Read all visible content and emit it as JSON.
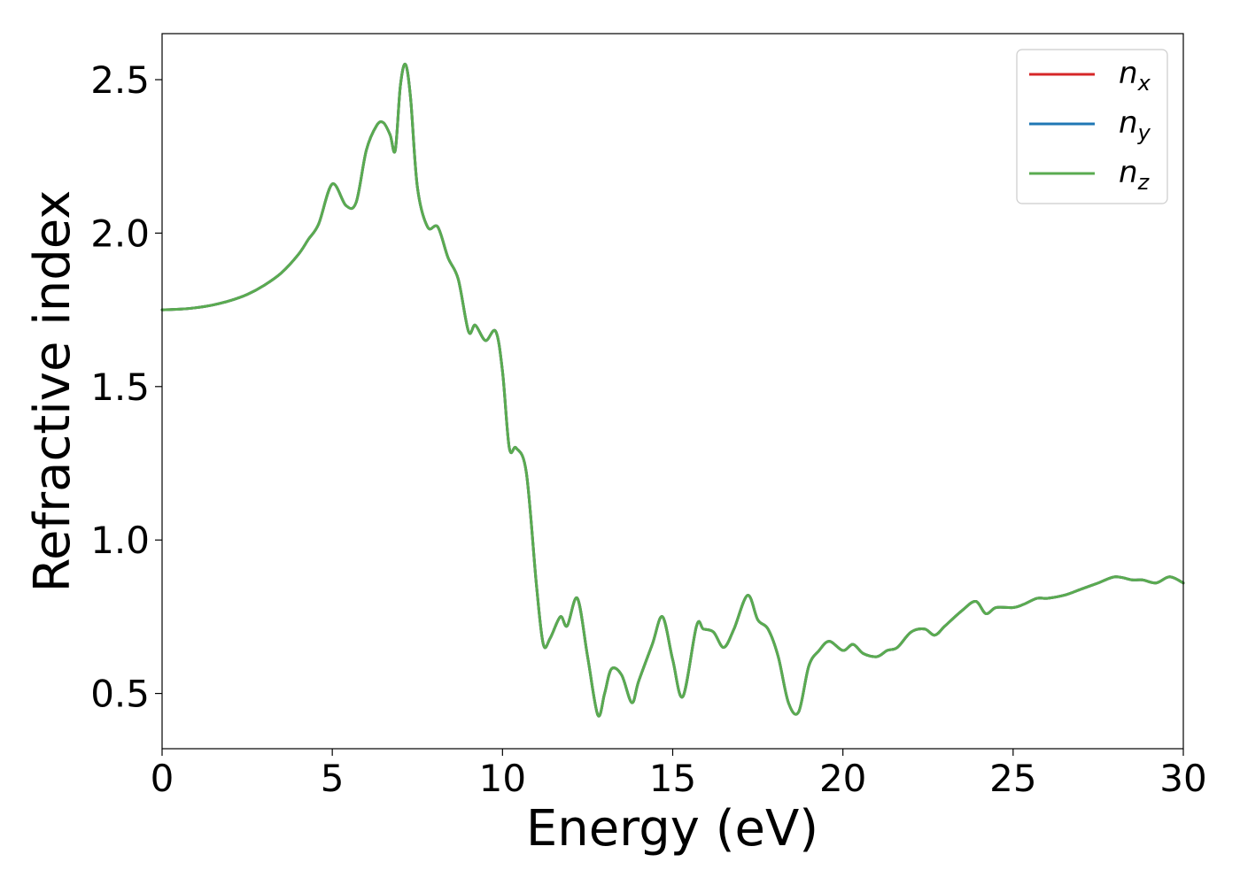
{
  "chart_data": {
    "type": "line",
    "title": "",
    "xlabel": "Energy (eV)",
    "ylabel": "Refractive index",
    "xlim": [
      0,
      30
    ],
    "ylim": [
      0.32,
      2.65
    ],
    "xticks": [
      0,
      5,
      10,
      15,
      20,
      25,
      30
    ],
    "xtick_labels": [
      "0",
      "5",
      "10",
      "15",
      "20",
      "25",
      "30"
    ],
    "yticks": [
      0.5,
      1.0,
      1.5,
      2.0,
      2.5
    ],
    "ytick_labels": [
      "0.5",
      "1.0",
      "1.5",
      "2.0",
      "2.5"
    ],
    "grid": false,
    "legend_position": "top-right",
    "x": [
      0,
      0.5,
      1,
      1.5,
      2,
      2.5,
      3,
      3.5,
      4,
      4.3,
      4.6,
      5,
      5.4,
      5.7,
      6,
      6.3,
      6.5,
      6.7,
      6.85,
      7,
      7.15,
      7.3,
      7.5,
      7.8,
      8.1,
      8.4,
      8.7,
      9.0,
      9.2,
      9.5,
      9.8,
      10.0,
      10.2,
      10.4,
      10.7,
      11.0,
      11.2,
      11.4,
      11.7,
      11.9,
      12.2,
      12.5,
      12.8,
      13.0,
      13.2,
      13.5,
      13.8,
      14.0,
      14.4,
      14.7,
      15.0,
      15.3,
      15.7,
      15.9,
      16.2,
      16.5,
      16.8,
      17.2,
      17.5,
      17.8,
      18.1,
      18.4,
      18.7,
      19.0,
      19.3,
      19.6,
      20.0,
      20.3,
      20.6,
      21.0,
      21.3,
      21.6,
      22.0,
      22.4,
      22.7,
      23.0,
      23.5,
      23.9,
      24.2,
      24.5,
      25.0,
      25.3,
      25.7,
      26.0,
      26.5,
      27.0,
      27.5,
      28.0,
      28.5,
      28.8,
      29.2,
      29.6,
      30.0
    ],
    "series": [
      {
        "name": "n_x",
        "label_base": "n",
        "label_sub": "x",
        "color": "#d62728",
        "values": [
          1.75,
          1.752,
          1.757,
          1.766,
          1.78,
          1.8,
          1.83,
          1.87,
          1.93,
          1.98,
          2.03,
          2.16,
          2.09,
          2.1,
          2.27,
          2.35,
          2.36,
          2.32,
          2.27,
          2.48,
          2.55,
          2.44,
          2.15,
          2.02,
          2.02,
          1.92,
          1.85,
          1.68,
          1.7,
          1.65,
          1.68,
          1.55,
          1.3,
          1.3,
          1.22,
          0.85,
          0.66,
          0.68,
          0.75,
          0.72,
          0.81,
          0.62,
          0.43,
          0.5,
          0.58,
          0.56,
          0.47,
          0.54,
          0.66,
          0.75,
          0.61,
          0.49,
          0.72,
          0.71,
          0.7,
          0.65,
          0.71,
          0.82,
          0.74,
          0.71,
          0.62,
          0.47,
          0.44,
          0.59,
          0.64,
          0.67,
          0.64,
          0.66,
          0.63,
          0.62,
          0.64,
          0.65,
          0.7,
          0.71,
          0.69,
          0.72,
          0.77,
          0.8,
          0.76,
          0.78,
          0.78,
          0.79,
          0.81,
          0.81,
          0.82,
          0.84,
          0.86,
          0.88,
          0.87,
          0.87,
          0.86,
          0.88,
          0.86
        ]
      },
      {
        "name": "n_y",
        "label_base": "n",
        "label_sub": "y",
        "color": "#1f77b4",
        "values": [
          1.75,
          1.752,
          1.757,
          1.766,
          1.78,
          1.8,
          1.83,
          1.87,
          1.93,
          1.98,
          2.03,
          2.16,
          2.09,
          2.1,
          2.27,
          2.35,
          2.36,
          2.32,
          2.27,
          2.48,
          2.55,
          2.44,
          2.15,
          2.02,
          2.02,
          1.92,
          1.85,
          1.68,
          1.7,
          1.65,
          1.68,
          1.55,
          1.3,
          1.3,
          1.22,
          0.85,
          0.66,
          0.68,
          0.75,
          0.72,
          0.81,
          0.62,
          0.43,
          0.5,
          0.58,
          0.56,
          0.47,
          0.54,
          0.66,
          0.75,
          0.61,
          0.49,
          0.72,
          0.71,
          0.7,
          0.65,
          0.71,
          0.82,
          0.74,
          0.71,
          0.62,
          0.47,
          0.44,
          0.59,
          0.64,
          0.67,
          0.64,
          0.66,
          0.63,
          0.62,
          0.64,
          0.65,
          0.7,
          0.71,
          0.69,
          0.72,
          0.77,
          0.8,
          0.76,
          0.78,
          0.78,
          0.79,
          0.81,
          0.81,
          0.82,
          0.84,
          0.86,
          0.88,
          0.87,
          0.87,
          0.86,
          0.88,
          0.86
        ]
      },
      {
        "name": "n_z",
        "label_base": "n",
        "label_sub": "z",
        "color": "#5aab50",
        "values": [
          1.75,
          1.752,
          1.757,
          1.766,
          1.78,
          1.8,
          1.83,
          1.87,
          1.93,
          1.98,
          2.03,
          2.16,
          2.09,
          2.1,
          2.27,
          2.35,
          2.36,
          2.32,
          2.27,
          2.48,
          2.55,
          2.44,
          2.15,
          2.02,
          2.02,
          1.92,
          1.85,
          1.68,
          1.7,
          1.65,
          1.68,
          1.55,
          1.3,
          1.3,
          1.22,
          0.85,
          0.66,
          0.68,
          0.75,
          0.72,
          0.81,
          0.62,
          0.43,
          0.5,
          0.58,
          0.56,
          0.47,
          0.54,
          0.66,
          0.75,
          0.61,
          0.49,
          0.72,
          0.71,
          0.7,
          0.65,
          0.71,
          0.82,
          0.74,
          0.71,
          0.62,
          0.47,
          0.44,
          0.59,
          0.64,
          0.67,
          0.64,
          0.66,
          0.63,
          0.62,
          0.64,
          0.65,
          0.7,
          0.71,
          0.69,
          0.72,
          0.77,
          0.8,
          0.76,
          0.78,
          0.78,
          0.79,
          0.81,
          0.81,
          0.82,
          0.84,
          0.86,
          0.88,
          0.87,
          0.87,
          0.86,
          0.88,
          0.86
        ]
      }
    ]
  }
}
